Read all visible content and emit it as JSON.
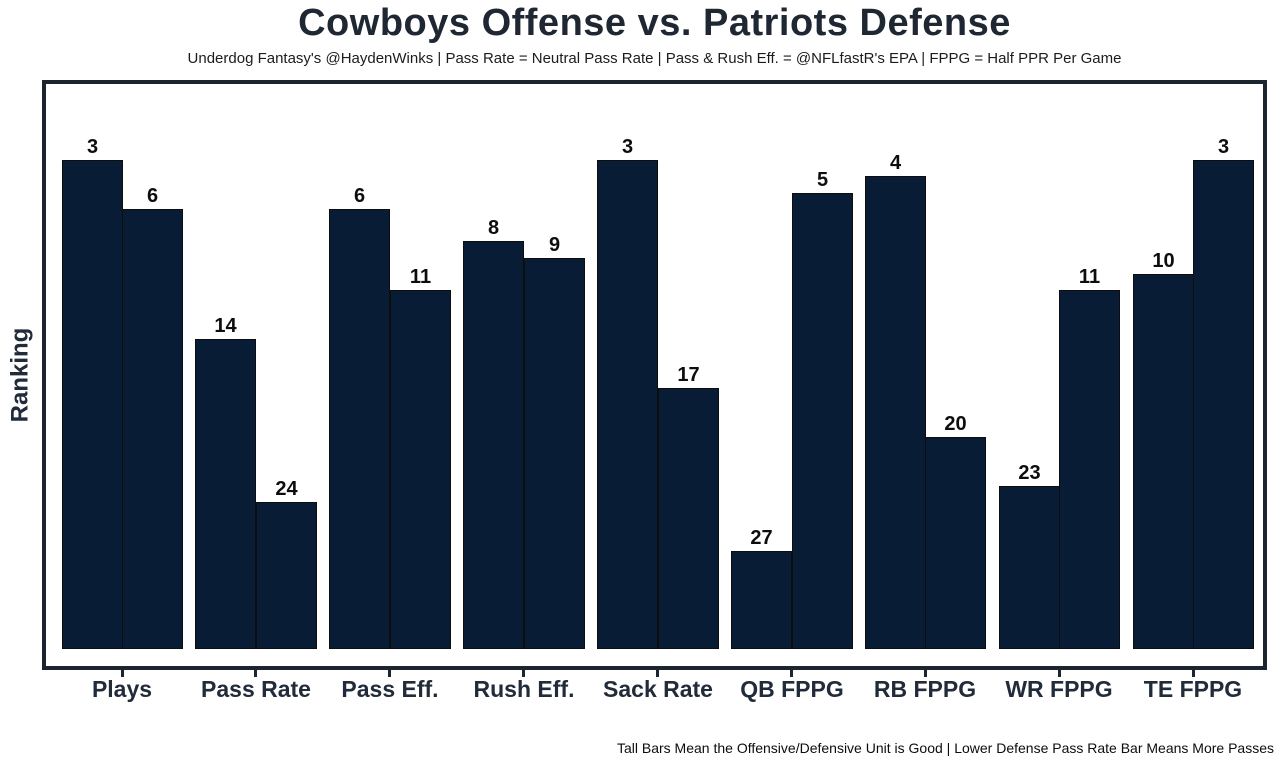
{
  "chart_data": {
    "type": "bar",
    "title": "Cowboys Offense vs. Patriots Defense",
    "subtitle": "Underdog Fantasy's @HaydenWinks | Pass Rate = Neutral Pass Rate | Pass & Rush Eff. = @NFLfastR's EPA | FPPG = Half PPR Per Game",
    "footnote": "Tall Bars Mean the Offensive/Defensive Unit is Good | Lower Defense Pass Rate Bar Means More Passes",
    "ylabel": "Ranking",
    "xlabel": "",
    "categories": [
      "Plays",
      "Pass Rate",
      "Pass Eff.",
      "Rush Eff.",
      "Sack Rate",
      "QB FPPG",
      "RB FPPG",
      "WR FPPG",
      "TE FPPG"
    ],
    "series": [
      {
        "name": "Cowboys Offense (left bar)",
        "values": [
          3,
          14,
          6,
          8,
          3,
          27,
          4,
          23,
          10
        ]
      },
      {
        "name": "Patriots Defense (right bar)",
        "values": [
          6,
          24,
          11,
          9,
          17,
          5,
          20,
          11,
          3
        ]
      }
    ],
    "bar_labels": "ranking number shown above each bar",
    "value_semantics": "NFL rank out of 32, 1 = best; taller bar = better rank (bar height drawn as 33 - rank)",
    "ylim": [
      0,
      34.5
    ],
    "grid": false,
    "legend": "none"
  },
  "colors": {
    "bar_fill": "#081c35",
    "bar_edge": "#0d0d0d",
    "frame": "#1c2430",
    "heading_text": "#1f2733",
    "axis_text": "#222b3a",
    "value_text": "#0d0d0d",
    "background": "#ffffff"
  }
}
